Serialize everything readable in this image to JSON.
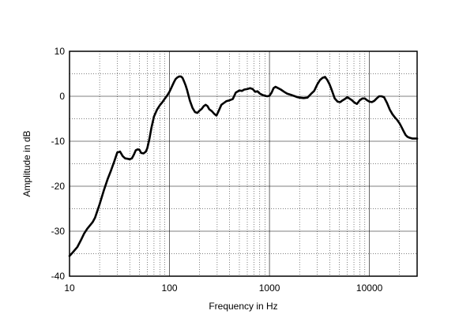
{
  "chart_data": {
    "type": "line",
    "title": "",
    "xlabel": "Frequency in Hz",
    "ylabel": "Amplitude in dB",
    "xscale": "log",
    "xlim": [
      10,
      30000
    ],
    "ylim": [
      -40,
      10
    ],
    "grid": true,
    "x_tick_labels": [
      "10",
      "100",
      "1000",
      "10000"
    ],
    "x_ticks": [
      10,
      100,
      1000,
      10000
    ],
    "y_tick_labels": [
      "10",
      "0",
      "-10",
      "-20",
      "-30",
      "-40"
    ],
    "y_ticks": [
      10,
      0,
      -10,
      -20,
      -30,
      -40
    ],
    "colors": {
      "line": "#000000",
      "grid": "#000000",
      "background": "#ffffff"
    },
    "series": [
      {
        "x": [
          10,
          11,
          12,
          13,
          14,
          15,
          17,
          18,
          20,
          22,
          24,
          26,
          28,
          30,
          32,
          34,
          36,
          38,
          40,
          42,
          44,
          46,
          48,
          50,
          52,
          55,
          58,
          60,
          63,
          66,
          70,
          75,
          80,
          85,
          90,
          95,
          100,
          105,
          110,
          115,
          120,
          125,
          130,
          135,
          140,
          145,
          150,
          155,
          160,
          170,
          180,
          190,
          200,
          210,
          220,
          230,
          240,
          250,
          265,
          280,
          295,
          310,
          330,
          350,
          370,
          400,
          430,
          460,
          500,
          530,
          560,
          600,
          640,
          680,
          720,
          760,
          800,
          850,
          900,
          950,
          1000,
          1050,
          1100,
          1150,
          1200,
          1300,
          1400,
          1500,
          1600,
          1700,
          1800,
          1900,
          2000,
          2200,
          2400,
          2600,
          2800,
          3000,
          3200,
          3400,
          3600,
          3800,
          4000,
          4200,
          4500,
          4800,
          5100,
          5400,
          5700,
          6000,
          6300,
          6700,
          7100,
          7500,
          8000,
          8500,
          9000,
          9500,
          10000,
          10600,
          11200,
          11800,
          12500,
          13200,
          14000,
          15000,
          16000,
          17000,
          18000,
          19000,
          20000,
          21000,
          22000,
          23000,
          24000,
          25000,
          26000,
          27000,
          28000,
          29000,
          30000
        ],
        "y": [
          -35.5,
          -34.5,
          -33.5,
          -32,
          -30.5,
          -29.5,
          -28,
          -27,
          -24,
          -21,
          -18.5,
          -16.5,
          -14.5,
          -12.5,
          -12.3,
          -13.3,
          -13.8,
          -13.9,
          -14,
          -13.8,
          -13,
          -12,
          -11.8,
          -11.9,
          -12.6,
          -12.7,
          -12.3,
          -11.5,
          -9.5,
          -7,
          -4.5,
          -3,
          -2,
          -1.3,
          -0.5,
          0.2,
          1,
          2,
          3,
          3.8,
          4.2,
          4.4,
          4.4,
          4.1,
          3.3,
          2.4,
          1.4,
          0.2,
          -1,
          -2.6,
          -3.5,
          -3.7,
          -3.2,
          -2.8,
          -2.2,
          -1.9,
          -2.2,
          -2.9,
          -3.3,
          -3.9,
          -4.3,
          -3.3,
          -1.9,
          -1.5,
          -1.1,
          -0.9,
          -0.6,
          0.8,
          1.3,
          1.2,
          1.5,
          1.6,
          1.8,
          1.6,
          1.0,
          1.1,
          0.6,
          0.3,
          0.1,
          0.0,
          0.1,
          0.8,
          1.8,
          2.1,
          1.9,
          1.5,
          1.0,
          0.6,
          0.4,
          0.2,
          0.0,
          -0.2,
          -0.3,
          -0.4,
          -0.3,
          0.5,
          1.2,
          2.6,
          3.6,
          4.1,
          4.3,
          3.6,
          2.6,
          1.4,
          -0.5,
          -1.2,
          -1.3,
          -0.9,
          -0.6,
          -0.2,
          -0.5,
          -0.9,
          -1.4,
          -1.7,
          -0.9,
          -0.5,
          -0.5,
          -0.9,
          -1.2,
          -1.3,
          -1.0,
          -0.5,
          0.0,
          0.0,
          -0.2,
          -1.5,
          -3.0,
          -4.0,
          -4.7,
          -5.3,
          -6.0,
          -6.9,
          -7.8,
          -8.6,
          -9.0,
          -9.2,
          -9.3,
          -9.4,
          -9.4,
          -9.4,
          -9.4
        ]
      }
    ]
  }
}
